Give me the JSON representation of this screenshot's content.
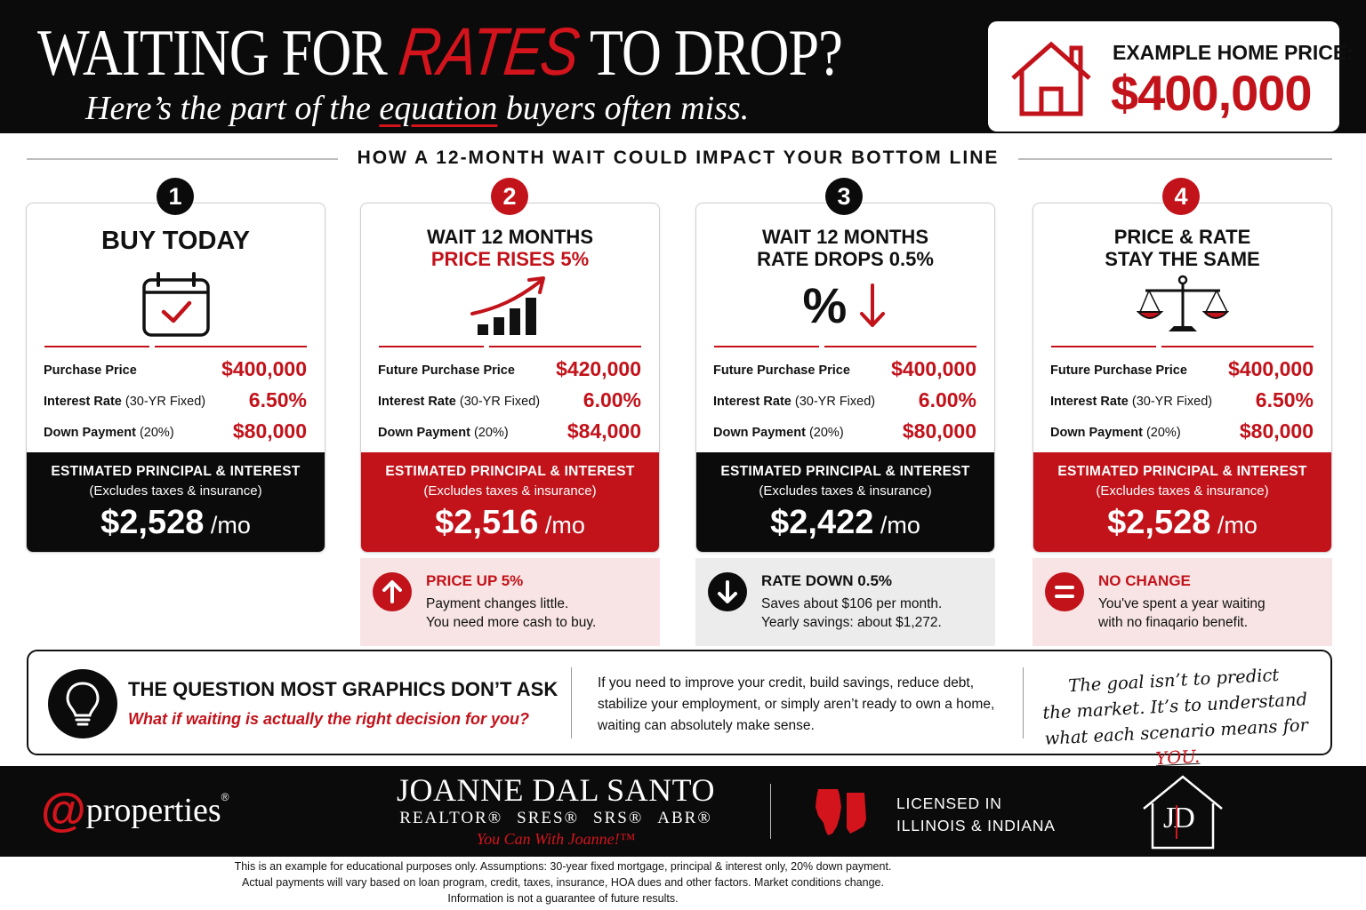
{
  "header": {
    "title_pre": "WAITING FOR ",
    "title_accent": "RATES",
    "title_post": " TO DROP?",
    "subtitle_pre": "Here’s the part of the ",
    "subtitle_accent": "equation",
    "subtitle_post": " buyers often miss.",
    "price_label": "EXAMPLE HOME PRICE:",
    "price_value": "$400,000"
  },
  "section_title": "HOW A 12-MONTH WAIT COULD IMPACT YOUR BOTTOM LINE",
  "colors": {
    "accent_red": "#c2121a",
    "dark": "#0b0b0b",
    "pink_bg": "#f8e4e4",
    "grey_bg": "#ececec"
  },
  "scenarios": [
    {
      "number": "1",
      "title_line1": "BUY TODAY",
      "title_line2": "",
      "icon": "calendar-check-icon",
      "rows": [
        {
          "label": "Purchase Price",
          "label_suffix": "",
          "value": "$400,000"
        },
        {
          "label": "Interest Rate",
          "label_suffix": " (30-YR Fixed)",
          "value": "6.50%"
        },
        {
          "label": "Down Payment",
          "label_suffix": " (20%)",
          "value": "$80,000"
        }
      ],
      "pi_title": "ESTIMATED PRINCIPAL & INTEREST",
      "pi_sub": "(Excludes taxes & insurance)",
      "pi_amount": "$2,528",
      "pi_unit": " /mo"
    },
    {
      "number": "2",
      "title_line1": "WAIT 12 MONTHS",
      "title_line2": "PRICE RISES 5%",
      "icon": "rising-bar-chart-icon",
      "rows": [
        {
          "label": "Future Purchase Price",
          "label_suffix": "",
          "value": "$420,000"
        },
        {
          "label": "Interest Rate",
          "label_suffix": " (30-YR Fixed)",
          "value": "6.00%"
        },
        {
          "label": "Down Payment",
          "label_suffix": " (20%)",
          "value": "$84,000"
        }
      ],
      "pi_title": "ESTIMATED PRINCIPAL & INTEREST",
      "pi_sub": "(Excludes taxes & insurance)",
      "pi_amount": "$2,516",
      "pi_unit": " /mo",
      "note": {
        "icon": "arrow-up-icon",
        "title": "PRICE UP 5%",
        "line1": "Payment changes little.",
        "line2": "You need more cash to buy."
      }
    },
    {
      "number": "3",
      "title_line1": "WAIT 12 MONTHS",
      "title_line2": "RATE DROPS 0.5%",
      "icon": "percent-down-icon",
      "icon_glyph": "%",
      "rows": [
        {
          "label": "Future Purchase Price",
          "label_suffix": "",
          "value": "$400,000"
        },
        {
          "label": "Interest Rate",
          "label_suffix": " (30-YR Fixed)",
          "value": "6.00%"
        },
        {
          "label": "Down Payment",
          "label_suffix": " (20%)",
          "value": "$80,000"
        }
      ],
      "pi_title": "ESTIMATED PRINCIPAL & INTEREST",
      "pi_sub": "(Excludes taxes & insurance)",
      "pi_amount": "$2,422",
      "pi_unit": " /mo",
      "note": {
        "icon": "arrow-down-icon",
        "title": "RATE DOWN 0.5%",
        "line1": "Saves about $106 per month.",
        "line2": "Yearly savings: about $1,272."
      }
    },
    {
      "number": "4",
      "title_line1": "PRICE & RATE",
      "title_line2": "STAY THE SAME",
      "icon": "balance-scale-icon",
      "rows": [
        {
          "label": "Future Purchase Price",
          "label_suffix": "",
          "value": "$400,000"
        },
        {
          "label": "Interest Rate",
          "label_suffix": " (30-YR Fixed)",
          "value": "6.50%"
        },
        {
          "label": "Down Payment",
          "label_suffix": " (20%)",
          "value": "$80,000"
        }
      ],
      "pi_title": "ESTIMATED PRINCIPAL & INTEREST",
      "pi_sub": "(Excludes taxes & insurance)",
      "pi_amount": "$2,528",
      "pi_unit": " /mo",
      "note": {
        "icon": "equals-icon",
        "title": "NO CHANGE",
        "line1": "You've spent a year waiting",
        "line2": "with no finaqario benefit."
      }
    }
  ],
  "question": {
    "title": "THE QUESTION MOST GRAPHICS DON’T ASK",
    "subtitle": "What if waiting is actually the right decision for you?",
    "para_line1": "If you need to improve your credit, build savings, reduce debt,",
    "para_line2": "stabilize your employment, or simply aren’t ready to own a home,",
    "para_line3": "waiting can absolutely make sense.",
    "hand_line1": "The goal isn’t to predict",
    "hand_line2": "the market. It’s to understand",
    "hand_line3_pre": "what each scenario means for ",
    "hand_line3_accent": "YOU."
  },
  "footer": {
    "logo_at": "@",
    "logo_text": "properties",
    "logo_reg": "®",
    "agent_name": "JOANNE DAL SANTO",
    "cred1": "REALTOR®",
    "cred2": "SRES®",
    "cred3": "SRS®",
    "cred4": "ABR®",
    "tagline": "You Can With Joanne!™",
    "licensed_line1": "LICENSED IN",
    "licensed_line2": "ILLINOIS & INDIANA",
    "monogram": "JD"
  },
  "disclaimer": {
    "line1": "This is an example for educational purposes only. Assumptions: 30-year fixed mortgage, principal & interest only, 20% down payment.",
    "line2": "Actual payments will vary based on loan program, credit, taxes, insurance, HOA dues and other factors. Market conditions change.",
    "line3": "Information is not a guarantee of future results."
  }
}
